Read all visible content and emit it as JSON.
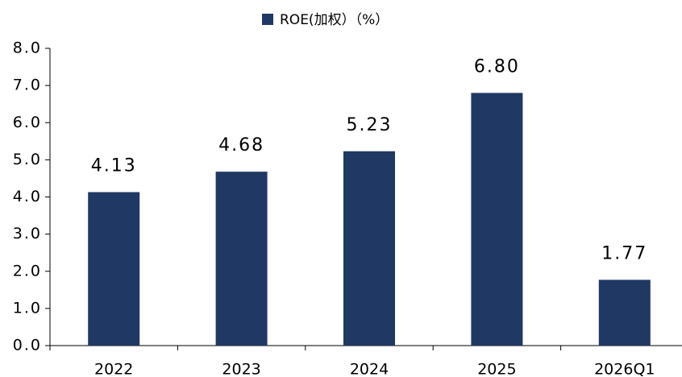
{
  "chart_data": {
    "type": "bar",
    "categories": [
      "2022",
      "2023",
      "2024",
      "2025",
      "2026Q1"
    ],
    "series": [
      {
        "name": "ROE(加权）（%）",
        "color": "#203864",
        "values": [
          4.13,
          4.68,
          5.23,
          6.8,
          1.77
        ],
        "value_labels": [
          "4.13",
          "4.68",
          "5.23",
          "6.80",
          "1.77"
        ]
      }
    ],
    "ylim": [
      0,
      8
    ],
    "yticks": [
      {
        "value": 0,
        "label": "0.0"
      },
      {
        "value": 1,
        "label": "1.0"
      },
      {
        "value": 2,
        "label": "2.0"
      },
      {
        "value": 3,
        "label": "3.0"
      },
      {
        "value": 4,
        "label": "4.0"
      },
      {
        "value": 5,
        "label": "5.0"
      },
      {
        "value": 6,
        "label": "6.0"
      },
      {
        "value": 7,
        "label": "7.0"
      },
      {
        "value": 8,
        "label": "8.0"
      }
    ],
    "grid": false,
    "legend": "top"
  }
}
